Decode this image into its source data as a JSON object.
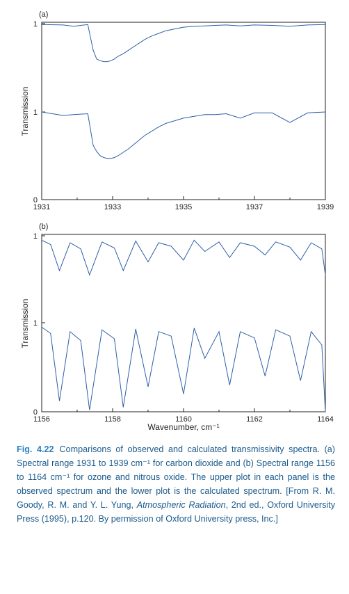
{
  "colors": {
    "line": "#2e5ea8",
    "axis": "#222222",
    "caption": "#1a5a8c",
    "caption_label": "#2a7fc1"
  },
  "chart_data": [
    {
      "type": "line",
      "panel_label": "(a)",
      "xlabel": "",
      "ylabel": "Transmission",
      "xlim": [
        1931,
        1939
      ],
      "x_ticks": [
        "1931",
        "1933",
        "1935",
        "1937",
        "1939"
      ],
      "y_ticks": [
        "0",
        "1",
        "1"
      ],
      "series": [
        {
          "x": [
            1931.0,
            1931.6,
            1931.9,
            1932.3,
            1932.45,
            1932.55,
            1932.65,
            1932.75,
            1932.85,
            1932.95,
            1933.05,
            1933.15,
            1933.3,
            1933.45,
            1933.6,
            1933.75,
            1933.9,
            1934.1,
            1934.3,
            1934.5,
            1934.75,
            1935.0,
            1935.3,
            1935.6,
            1935.9,
            1936.2,
            1936.6,
            1937.0,
            1937.5,
            1938.0,
            1938.5,
            1939.0
          ],
          "y": [
            0.99,
            0.985,
            0.97,
            0.99,
            0.7,
            0.6,
            0.58,
            0.57,
            0.57,
            0.58,
            0.6,
            0.63,
            0.66,
            0.7,
            0.74,
            0.78,
            0.82,
            0.86,
            0.89,
            0.92,
            0.94,
            0.96,
            0.97,
            0.975,
            0.98,
            0.985,
            0.975,
            0.985,
            0.98,
            0.97,
            0.985,
            0.99
          ]
        },
        {
          "x": [
            1931.0,
            1931.6,
            1931.9,
            1932.3,
            1932.45,
            1932.55,
            1932.65,
            1932.75,
            1932.85,
            1932.95,
            1933.05,
            1933.15,
            1933.3,
            1933.45,
            1933.6,
            1933.75,
            1933.9,
            1934.1,
            1934.3,
            1934.5,
            1934.75,
            1935.0,
            1935.3,
            1935.6,
            1935.9,
            1936.2,
            1936.6,
            1937.0,
            1937.5,
            1938.0,
            1938.5,
            1939.0
          ],
          "y": [
            1.0,
            0.96,
            0.97,
            0.98,
            0.62,
            0.55,
            0.5,
            0.48,
            0.47,
            0.47,
            0.48,
            0.5,
            0.54,
            0.58,
            0.63,
            0.68,
            0.73,
            0.78,
            0.83,
            0.87,
            0.9,
            0.93,
            0.95,
            0.97,
            0.97,
            0.98,
            0.93,
            0.99,
            0.99,
            0.88,
            0.99,
            1.0
          ]
        }
      ]
    },
    {
      "type": "line",
      "panel_label": "(b)",
      "xlabel": "Wavenumber, cm⁻¹",
      "ylabel": "Transmission",
      "xlim": [
        1156,
        1164
      ],
      "x_ticks": [
        "1156",
        "1158",
        "1160",
        "1162",
        "1164"
      ],
      "y_ticks": [
        "0",
        "1",
        "1"
      ],
      "series": [
        {
          "x": [
            1156.0,
            1156.25,
            1156.5,
            1156.8,
            1157.1,
            1157.35,
            1157.7,
            1158.05,
            1158.3,
            1158.65,
            1159.0,
            1159.3,
            1159.65,
            1160.0,
            1160.3,
            1160.6,
            1161.0,
            1161.3,
            1161.6,
            1162.0,
            1162.3,
            1162.6,
            1163.0,
            1163.3,
            1163.6,
            1163.9,
            1164.0
          ],
          "y": [
            0.95,
            0.9,
            0.6,
            0.92,
            0.85,
            0.55,
            0.93,
            0.86,
            0.6,
            0.94,
            0.7,
            0.92,
            0.88,
            0.72,
            0.95,
            0.82,
            0.93,
            0.75,
            0.92,
            0.88,
            0.78,
            0.93,
            0.87,
            0.72,
            0.92,
            0.85,
            0.55
          ]
        },
        {
          "x": [
            1156.0,
            1156.25,
            1156.5,
            1156.8,
            1157.1,
            1157.35,
            1157.7,
            1158.05,
            1158.3,
            1158.65,
            1159.0,
            1159.3,
            1159.65,
            1160.0,
            1160.3,
            1160.6,
            1161.0,
            1161.3,
            1161.6,
            1162.0,
            1162.3,
            1162.6,
            1163.0,
            1163.3,
            1163.6,
            1163.9,
            1164.0
          ],
          "y": [
            0.95,
            0.88,
            0.12,
            0.9,
            0.8,
            0.02,
            0.92,
            0.82,
            0.05,
            0.93,
            0.28,
            0.9,
            0.85,
            0.2,
            0.94,
            0.6,
            0.9,
            0.3,
            0.9,
            0.83,
            0.4,
            0.92,
            0.85,
            0.35,
            0.9,
            0.75,
            0.0
          ]
        }
      ]
    }
  ],
  "caption": {
    "label": "Fig. 4.22",
    "text": "Comparisons of observed and calculated transmissivity spectra. (a) Spectral range 1931 to 1939 cm⁻¹ for carbon dioxide and (b) Spectral range 1156 to 1164 cm⁻¹ for ozone and nitrous oxide. The upper plot in each panel is the observed spectrum and the lower plot is the calculated spectrum. [From R. M. Goody, R. M. and Y. L. Yung, ",
    "source_title": "Atmospheric Radiation",
    "source_rest": ", 2nd ed., Oxford University Press (1995), p.120. By permission of Oxford University press, Inc.]"
  }
}
